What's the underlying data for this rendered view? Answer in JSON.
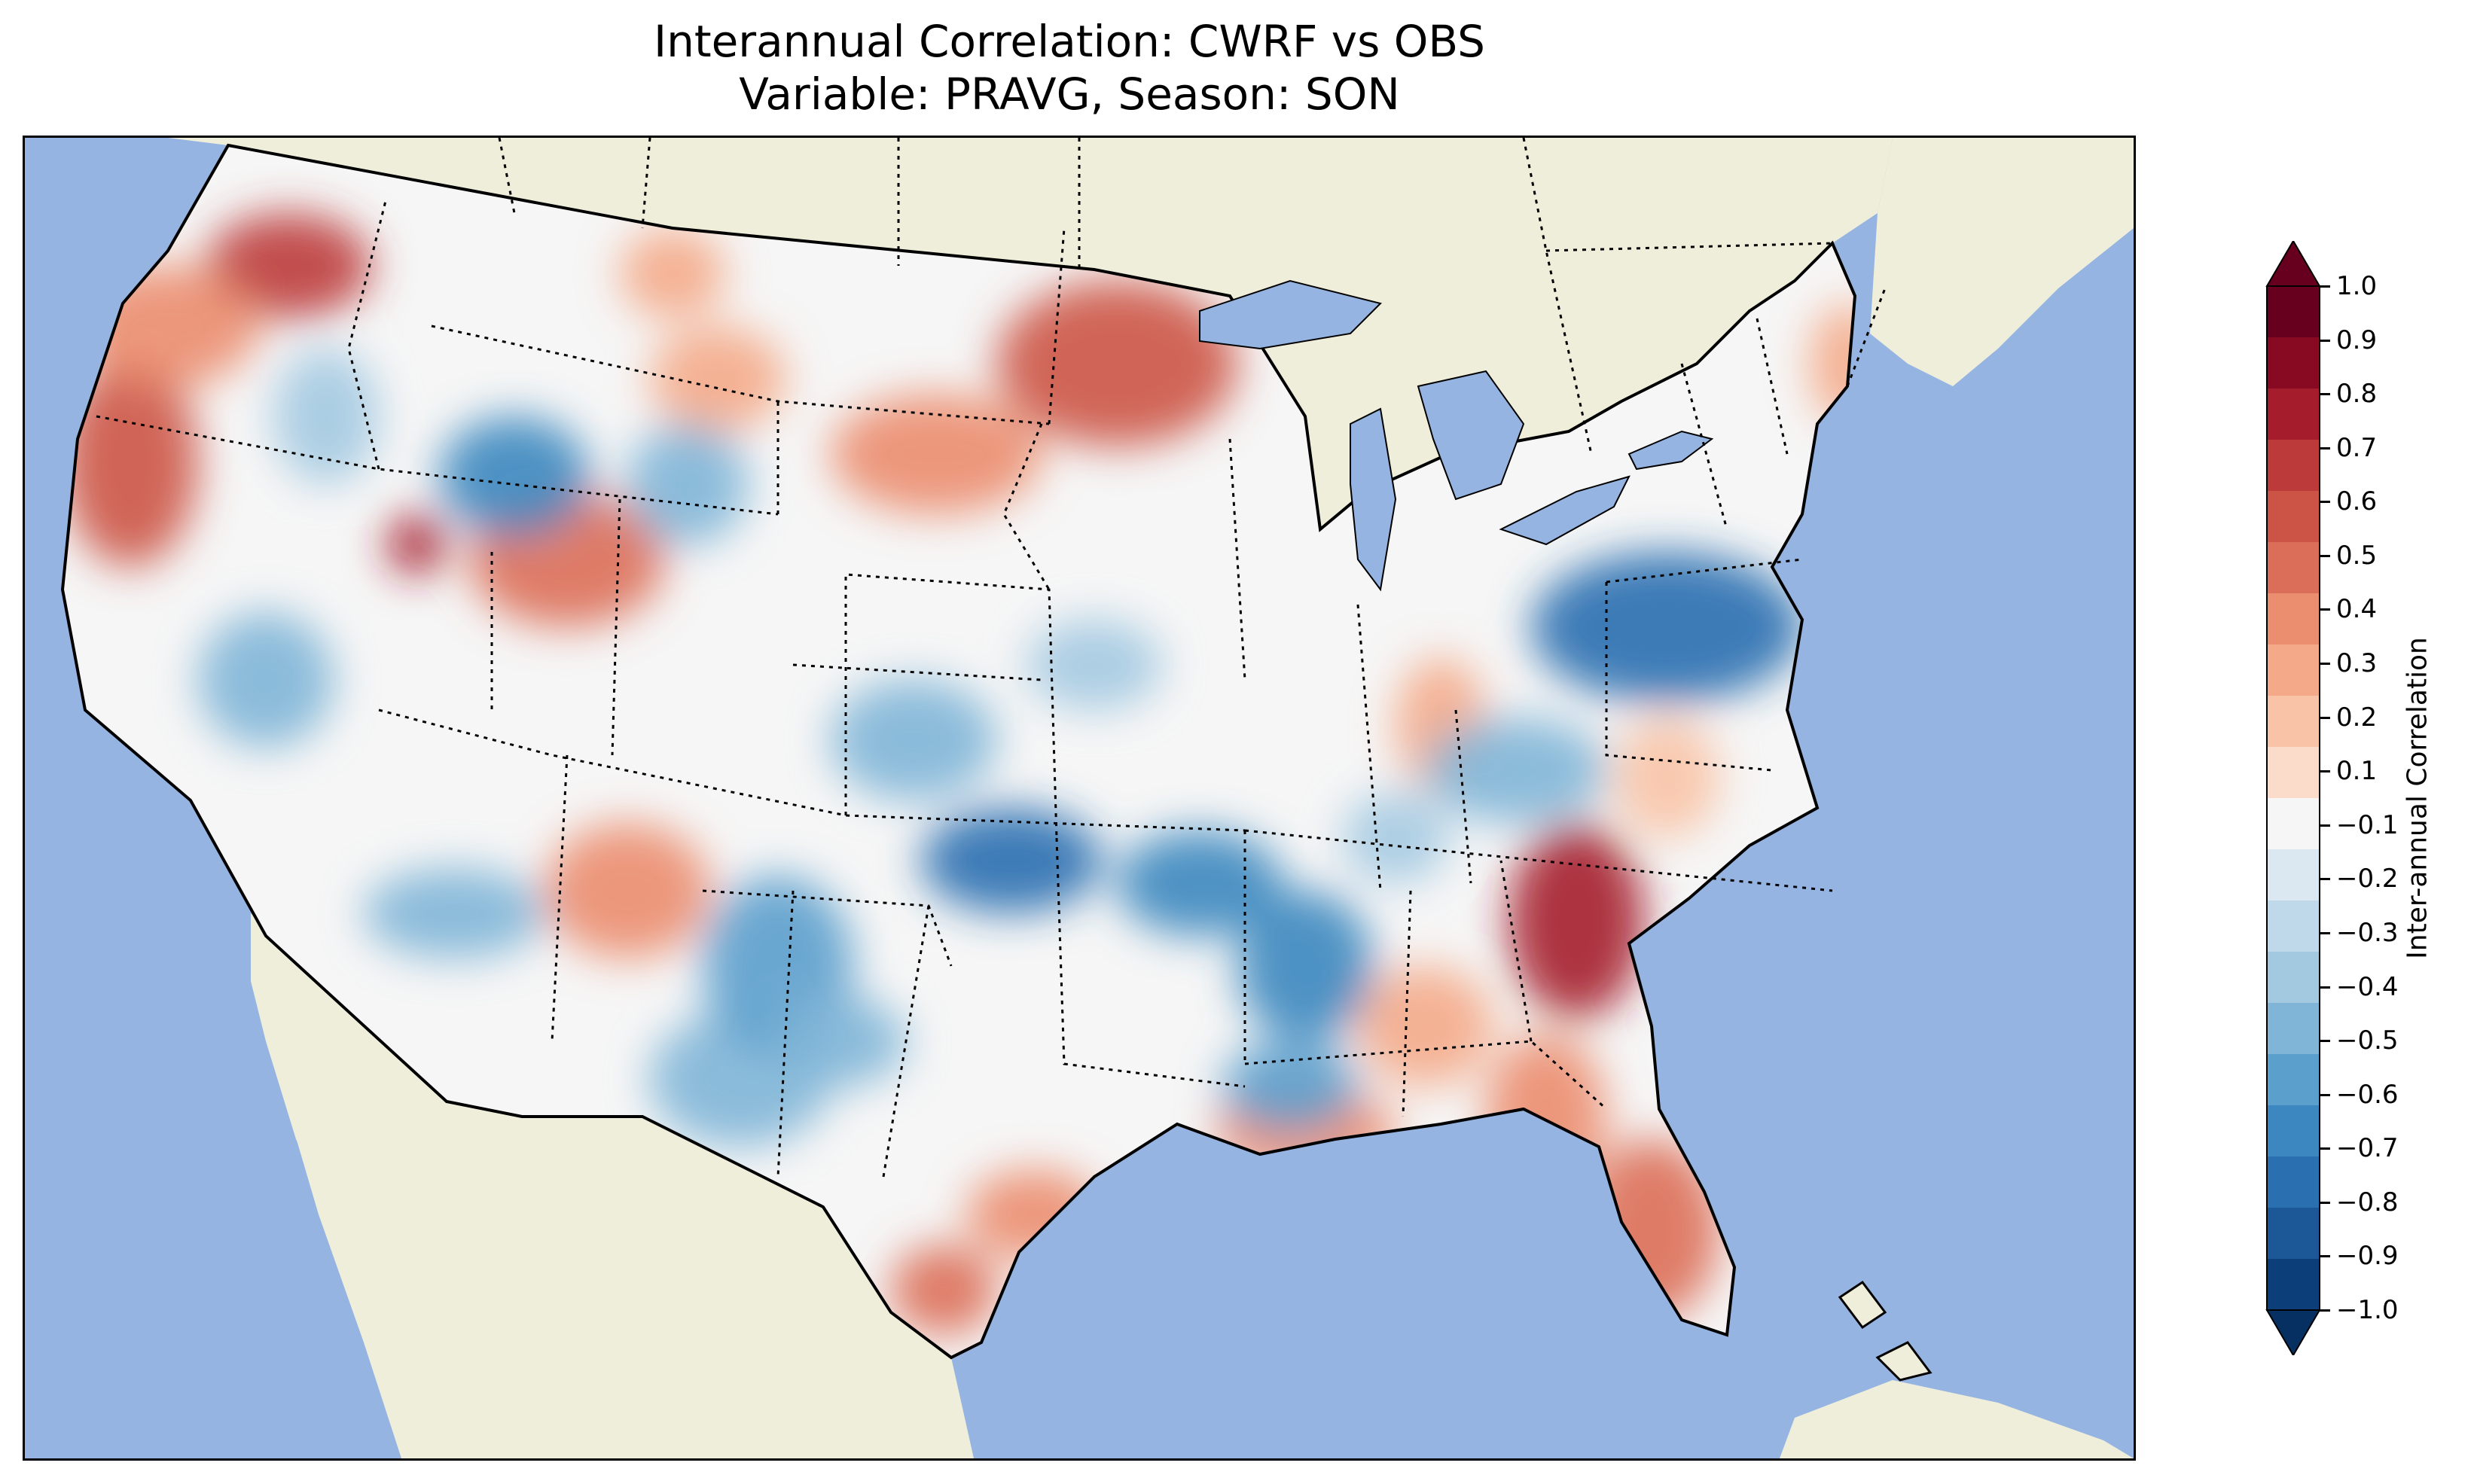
{
  "title": {
    "line1": "Interannual Correlation: CWRF vs OBS",
    "line2": "Variable: PRAVG, Season: SON"
  },
  "colors": {
    "ocean": "#95b4e1",
    "land": "#efeedb",
    "border": "#000000"
  },
  "colorbar": {
    "label": "Inter-annual Correlation",
    "ticks": [
      "1.0",
      "0.9",
      "0.8",
      "0.7",
      "0.6",
      "0.5",
      "0.4",
      "0.3",
      "0.2",
      "0.1",
      "−0.1",
      "−0.2",
      "−0.3",
      "−0.4",
      "−0.5",
      "−0.6",
      "−0.7",
      "−0.8",
      "−0.9",
      "−1.0"
    ],
    "levels_top_to_bottom": [
      "#67001f",
      "#880a22",
      "#a51d2d",
      "#bd3a3a",
      "#cc5447",
      "#db6e58",
      "#eb8d6f",
      "#f4aa88",
      "#f8c3a6",
      "#fbdbc9",
      "#f6f6f6",
      "#dbe8f2",
      "#c0d9ea",
      "#a3c9e1",
      "#80b5d7",
      "#5b9fcc",
      "#3c87bf",
      "#2a6fb0",
      "#1c5898",
      "#0c3f79"
    ],
    "extend_max": "#67001f",
    "extend_min": "#053061"
  },
  "map": {
    "projection": "Lambert conformal (CONUS)",
    "field": "PRAVG correlation",
    "dominant_positive_regions": [
      "Pacific Northwest",
      "Northern California coast",
      "Wyoming",
      "Minnesota",
      "Georgia",
      "Florida",
      "South Texas"
    ],
    "dominant_negative_regions": [
      "Montana/Idaho",
      "Kansas",
      "Missouri",
      "Arkansas/Mississippi",
      "Pennsylvania",
      "New Mexico"
    ]
  }
}
